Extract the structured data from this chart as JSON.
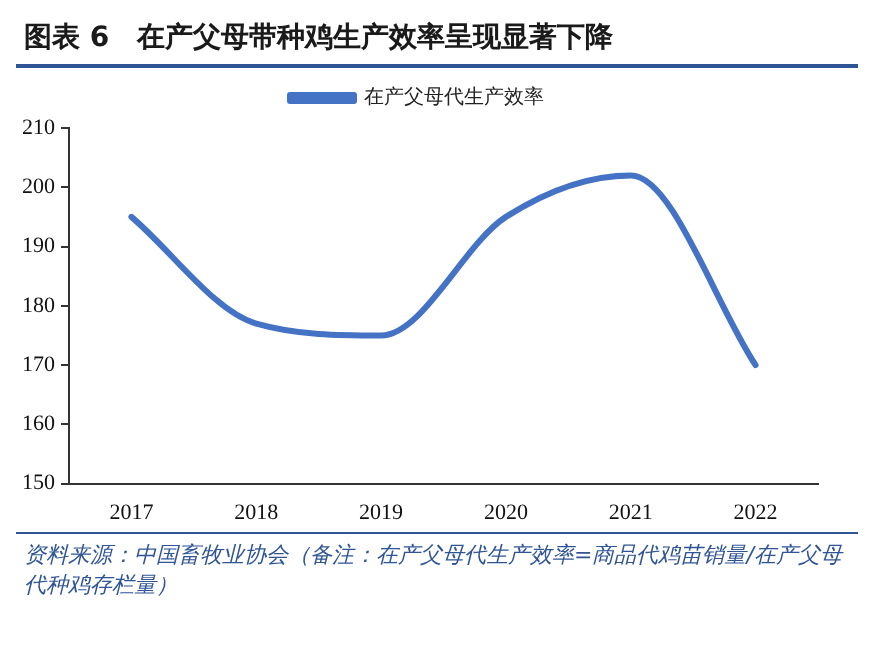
{
  "chart_data": {
    "type": "line",
    "title": "图表 6　在产父母带种鸡生产效率呈现显著下降",
    "categories": [
      "2017",
      "2018",
      "2019",
      "2020",
      "2021",
      "2022"
    ],
    "series": [
      {
        "name": "在产父母代生产效率",
        "color": "#4472c4",
        "values": [
          195,
          177,
          175,
          195,
          202,
          170
        ]
      }
    ],
    "ylim": [
      150,
      210
    ],
    "yticks": [
      150,
      160,
      170,
      180,
      190,
      200,
      210
    ],
    "grid": false,
    "legend": "top",
    "marker": "none",
    "line_style": "solid",
    "annotations": [
      "资料来源：中国畜牧业协会（备注：在产父母代生产效率=商品代鸡苗销量/在产父母代种鸡存栏量）"
    ]
  }
}
